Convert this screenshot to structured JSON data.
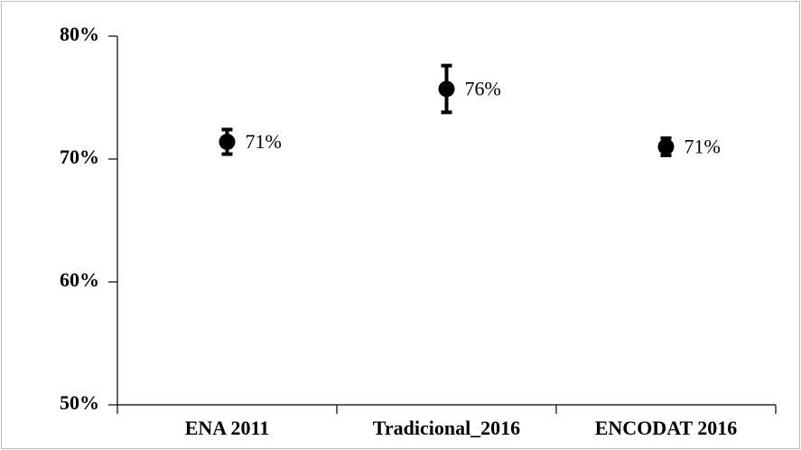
{
  "chart_data": {
    "type": "errorbar",
    "categories": [
      "ENA 2011",
      "Tradicional_2016",
      "ENCODAT 2016"
    ],
    "values": [
      71.4,
      75.7,
      71.0
    ],
    "value_labels": [
      "71%",
      "76%",
      "71%"
    ],
    "errors": [
      1.0,
      1.9,
      0.7
    ],
    "color": "#000000",
    "ylim": [
      50,
      80
    ],
    "yticks": [
      {
        "value": 50,
        "label": "50%"
      },
      {
        "value": 60,
        "label": "60%"
      },
      {
        "value": 70,
        "label": "70%"
      },
      {
        "value": 80,
        "label": "80%"
      }
    ],
    "grid": false
  }
}
